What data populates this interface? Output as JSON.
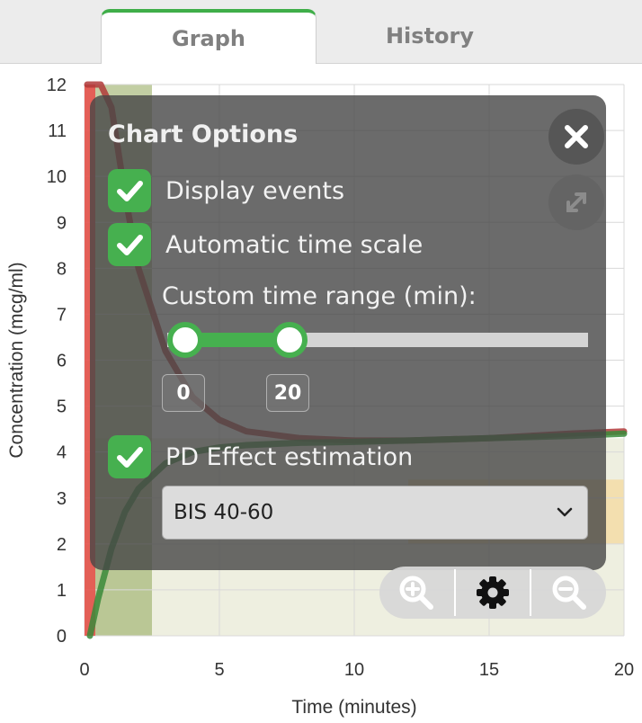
{
  "tabs": [
    {
      "label": "Graph",
      "active": true
    },
    {
      "label": "History",
      "active": false
    }
  ],
  "chart_data": {
    "type": "line",
    "xlabel": "Time (minutes)",
    "ylabel": "Concentration (mcg/ml)",
    "xlim": [
      0,
      20
    ],
    "ylim": [
      0,
      12
    ],
    "x_ticks": [
      0,
      5,
      10,
      15,
      20
    ],
    "y_ticks": [
      0,
      1,
      2,
      3,
      4,
      5,
      6,
      7,
      8,
      9,
      10,
      11,
      12
    ],
    "grid": true,
    "effect_band": {
      "y": [
        2,
        3.4
      ],
      "x": [
        12,
        20
      ],
      "color": "#f5d89a"
    },
    "event_band": {
      "x": [
        0,
        2.5
      ],
      "color": "#8fa558"
    },
    "series": [
      {
        "color": "#b03a3a",
        "x": [
          0.1,
          0.3,
          0.6,
          1.0,
          1.5,
          2.0,
          3.0,
          4.0,
          5.0,
          6.0,
          8.0,
          10.0,
          12.0,
          15.0,
          18.0,
          20.0
        ],
        "y": [
          12.0,
          12.0,
          12.0,
          11.5,
          9.6,
          8.0,
          6.2,
          5.2,
          4.7,
          4.45,
          4.3,
          4.25,
          4.25,
          4.3,
          4.4,
          4.45
        ]
      },
      {
        "color": "#3a8a3a",
        "x": [
          0.2,
          0.5,
          1.0,
          1.5,
          2.0,
          3.0,
          4.0,
          5.0,
          6.0,
          8.0,
          10.0,
          12.0,
          15.0,
          18.0,
          20.0
        ],
        "y": [
          0.0,
          0.8,
          1.9,
          2.7,
          3.2,
          3.75,
          4.0,
          4.1,
          4.15,
          4.2,
          4.22,
          4.25,
          4.3,
          4.35,
          4.4
        ]
      }
    ],
    "bolus_x": 0.2
  },
  "options": {
    "title": "Chart Options",
    "display_events": {
      "label": "Display events",
      "checked": true
    },
    "automatic_time_scale": {
      "label": "Automatic time scale",
      "checked": true
    },
    "custom_range_label": "Custom time range (min):",
    "range_min": "0",
    "range_max": "20",
    "pd_effect": {
      "label": "PD Effect estimation",
      "checked": true
    },
    "pd_select_value": "BIS 40-60"
  },
  "icons": {
    "close": "close-icon",
    "expand": "expand-icon",
    "zoom_in": "zoom-in-icon",
    "settings": "gear-icon",
    "zoom_out": "zoom-out-icon"
  }
}
